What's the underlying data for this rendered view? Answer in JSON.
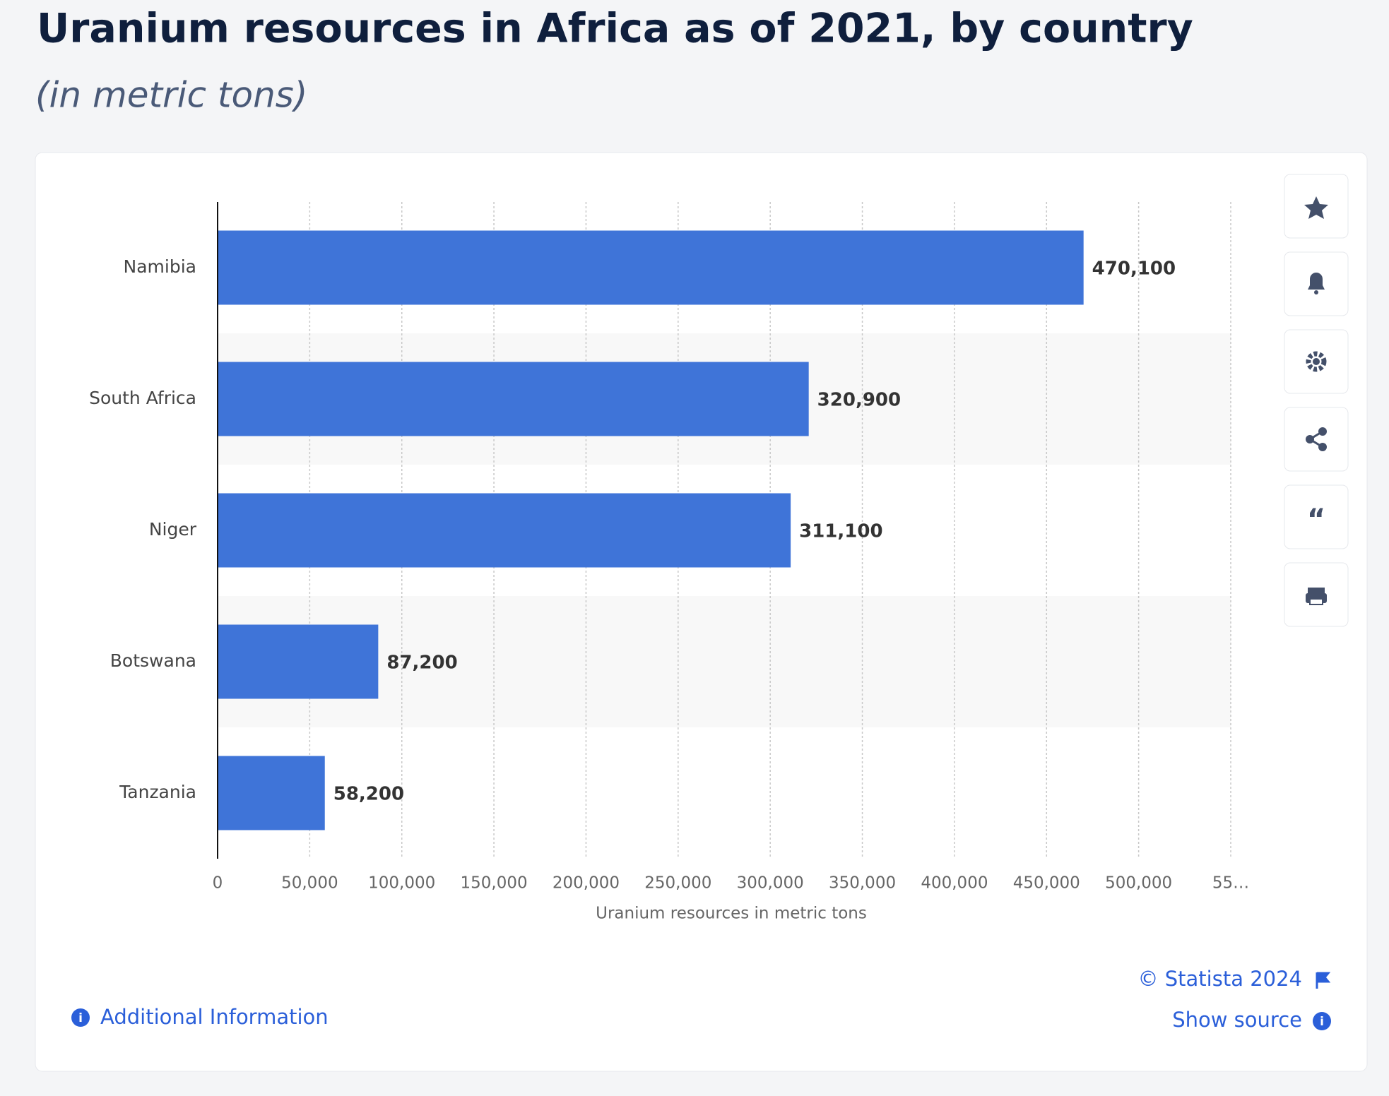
{
  "chart_data": {
    "type": "bar",
    "orientation": "horizontal",
    "title": "Uranium resources in Africa as of 2021, by country",
    "subtitle": "(in metric tons)",
    "categories": [
      "Namibia",
      "South Africa",
      "Niger",
      "Botswana",
      "Tanzania"
    ],
    "values": [
      470100,
      320900,
      311100,
      87200,
      58200
    ],
    "value_labels": [
      "470,100",
      "320,900",
      "311,100",
      "87,200",
      "58,200"
    ],
    "color": "#3f74d8",
    "xlim": [
      0,
      550000
    ],
    "xticks": [
      0,
      {
        "value": 50000,
        "label": "50,000"
      },
      {
        "value": 100000,
        "label": "100,000"
      },
      {
        "value": 150000,
        "label": "150,000"
      },
      {
        "value": 200000,
        "label": "200,000"
      },
      {
        "value": 250000,
        "label": "250,000"
      },
      {
        "value": 300000,
        "label": "300,000"
      },
      {
        "value": 350000,
        "label": "350,000"
      },
      {
        "value": 400000,
        "label": "400,000"
      },
      {
        "value": 450000,
        "label": "450,000"
      },
      {
        "value": 500000,
        "label": "500,000"
      },
      {
        "value": 550000,
        "label": "55…"
      }
    ],
    "xlabel": "Uranium resources in metric tons",
    "grid": true,
    "copyright": "© Statista 2024",
    "show_source": "Show source",
    "additional_info": "Additional Information"
  }
}
